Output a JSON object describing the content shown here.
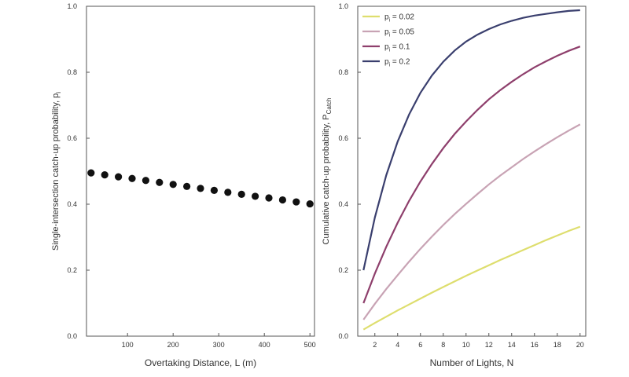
{
  "chart_data": [
    {
      "type": "scatter",
      "xlabel": "Overtaking Distance, L (m)",
      "ylabel": "Single-intersection catch-up probability, p",
      "ylabel_sub": "i",
      "xlim": [
        10,
        510
      ],
      "ylim": [
        0,
        1.0
      ],
      "xticks": [
        100,
        200,
        300,
        400,
        500
      ],
      "yticks": [
        0.0,
        0.2,
        0.4,
        0.6,
        0.8,
        1.0
      ],
      "x": [
        20,
        50,
        80,
        110,
        140,
        170,
        200,
        230,
        260,
        290,
        320,
        350,
        380,
        410,
        440,
        470,
        500
      ],
      "y": [
        0.495,
        0.489,
        0.483,
        0.478,
        0.472,
        0.466,
        0.46,
        0.454,
        0.448,
        0.442,
        0.436,
        0.43,
        0.424,
        0.419,
        0.413,
        0.407,
        0.401
      ],
      "marker_color": "#111111"
    },
    {
      "type": "line",
      "xlabel": "Number of Lights, N",
      "ylabel": "Cumulative catch-up probability, P",
      "ylabel_sub": "Catch",
      "xlim": [
        0.5,
        20.5
      ],
      "ylim": [
        0,
        1.0
      ],
      "xticks": [
        2,
        4,
        6,
        8,
        10,
        12,
        14,
        16,
        18,
        20
      ],
      "yticks": [
        0.0,
        0.2,
        0.4,
        0.6,
        0.8,
        1.0
      ],
      "legend_position": "top-left",
      "x": [
        1,
        2,
        3,
        4,
        5,
        6,
        7,
        8,
        9,
        10,
        11,
        12,
        13,
        14,
        15,
        16,
        17,
        18,
        19,
        20
      ],
      "series": [
        {
          "name_prefix": "p",
          "name_sub": "i",
          "name_suffix": " = 0.02",
          "color": "#dede6e",
          "values": [
            0.02,
            0.04,
            0.059,
            0.078,
            0.096,
            0.114,
            0.132,
            0.149,
            0.166,
            0.183,
            0.199,
            0.215,
            0.231,
            0.246,
            0.261,
            0.276,
            0.291,
            0.305,
            0.319,
            0.332
          ]
        },
        {
          "name_prefix": "p",
          "name_sub": "i",
          "name_suffix": " = 0.05",
          "color": "#c8a3b4",
          "values": [
            0.05,
            0.098,
            0.143,
            0.185,
            0.226,
            0.265,
            0.302,
            0.337,
            0.37,
            0.401,
            0.431,
            0.46,
            0.487,
            0.512,
            0.537,
            0.56,
            0.582,
            0.603,
            0.623,
            0.642
          ]
        },
        {
          "name_prefix": "p",
          "name_sub": "i",
          "name_suffix": " = 0.1",
          "color": "#8e3f6c",
          "values": [
            0.1,
            0.19,
            0.271,
            0.344,
            0.41,
            0.469,
            0.522,
            0.57,
            0.613,
            0.651,
            0.686,
            0.718,
            0.746,
            0.771,
            0.794,
            0.815,
            0.833,
            0.85,
            0.865,
            0.878
          ]
        },
        {
          "name_prefix": "p",
          "name_sub": "i",
          "name_suffix": " = 0.2",
          "color": "#3a3f6e",
          "values": [
            0.2,
            0.36,
            0.488,
            0.59,
            0.672,
            0.738,
            0.79,
            0.832,
            0.866,
            0.893,
            0.914,
            0.931,
            0.945,
            0.956,
            0.965,
            0.972,
            0.977,
            0.982,
            0.986,
            0.988
          ]
        }
      ]
    }
  ]
}
